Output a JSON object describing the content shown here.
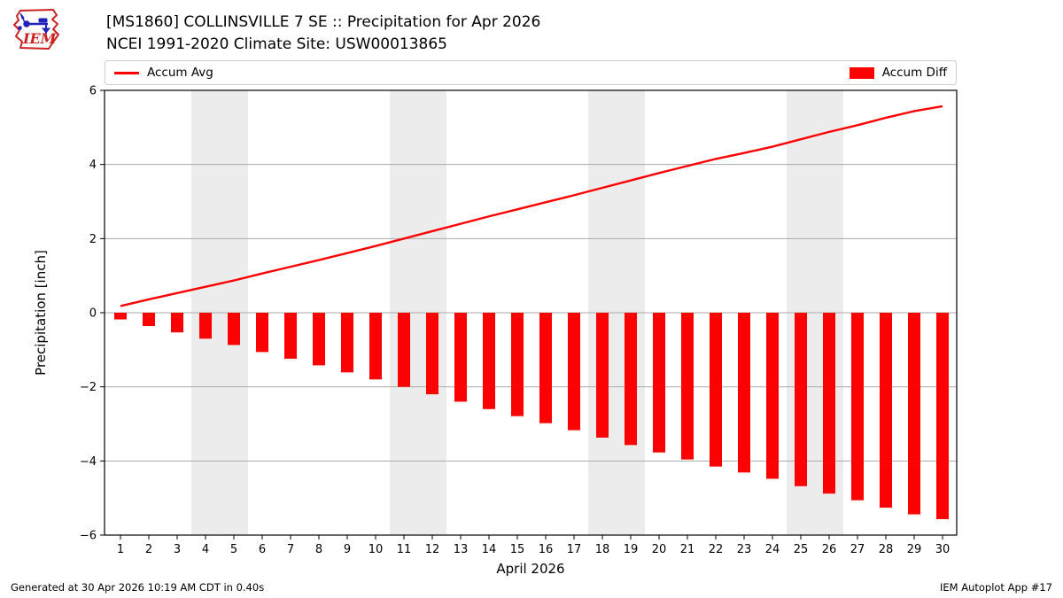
{
  "header": {
    "title_line1": "[MS1860] COLLINSVILLE 7 SE :: Precipitation for Apr 2026",
    "title_line2": "NCEI 1991-2020 Climate Site: USW00013865",
    "logo_text": "IEM"
  },
  "legend": {
    "avg_label": "Accum Avg",
    "diff_label": "Accum Diff"
  },
  "footer": {
    "generated": "Generated at 30 Apr 2026 10:19 AM CDT in 0.40s",
    "app": "IEM Autoplot App #17"
  },
  "colors": {
    "accent_red": "#ff0000",
    "weekend_band": "#ececec",
    "gridline": "#aaaaaa",
    "plot_border": "#000000",
    "legend_border": "#cfcfcf",
    "logo_red": "#cc2222",
    "logo_blue": "#2222bb"
  },
  "chart_data": {
    "type": "bar",
    "title": "[MS1860] COLLINSVILLE 7 SE :: Precipitation for Apr 2026",
    "subtitle": "NCEI 1991-2020 Climate Site: USW00013865",
    "xlabel": "April 2026",
    "ylabel": "Precipitation [inch]",
    "ylim": [
      -6,
      6
    ],
    "yticks": [
      -6,
      -4,
      -2,
      0,
      2,
      4,
      6
    ],
    "grid": "horizontal",
    "legend_position": "top",
    "x": [
      1,
      2,
      3,
      4,
      5,
      6,
      7,
      8,
      9,
      10,
      11,
      12,
      13,
      14,
      15,
      16,
      17,
      18,
      19,
      20,
      21,
      22,
      23,
      24,
      25,
      26,
      27,
      28,
      29,
      30
    ],
    "weekend_bands_days": [
      [
        4,
        5
      ],
      [
        11,
        12
      ],
      [
        18,
        19
      ],
      [
        25,
        26
      ]
    ],
    "series": [
      {
        "name": "Accum Avg",
        "type": "line",
        "color": "#ff0000",
        "values": [
          0.18,
          0.36,
          0.53,
          0.7,
          0.87,
          1.06,
          1.24,
          1.42,
          1.61,
          1.8,
          2.0,
          2.2,
          2.4,
          2.6,
          2.79,
          2.98,
          3.17,
          3.37,
          3.57,
          3.77,
          3.96,
          4.15,
          4.31,
          4.48,
          4.68,
          4.88,
          5.06,
          5.26,
          5.44,
          5.57
        ]
      },
      {
        "name": "Accum Diff",
        "type": "bar",
        "color": "#ff0000",
        "values": [
          -0.18,
          -0.36,
          -0.53,
          -0.7,
          -0.87,
          -1.06,
          -1.24,
          -1.42,
          -1.61,
          -1.8,
          -2.0,
          -2.2,
          -2.4,
          -2.6,
          -2.79,
          -2.98,
          -3.17,
          -3.37,
          -3.57,
          -3.77,
          -3.96,
          -4.15,
          -4.31,
          -4.48,
          -4.68,
          -4.88,
          -5.06,
          -5.26,
          -5.44,
          -5.57
        ]
      }
    ]
  }
}
